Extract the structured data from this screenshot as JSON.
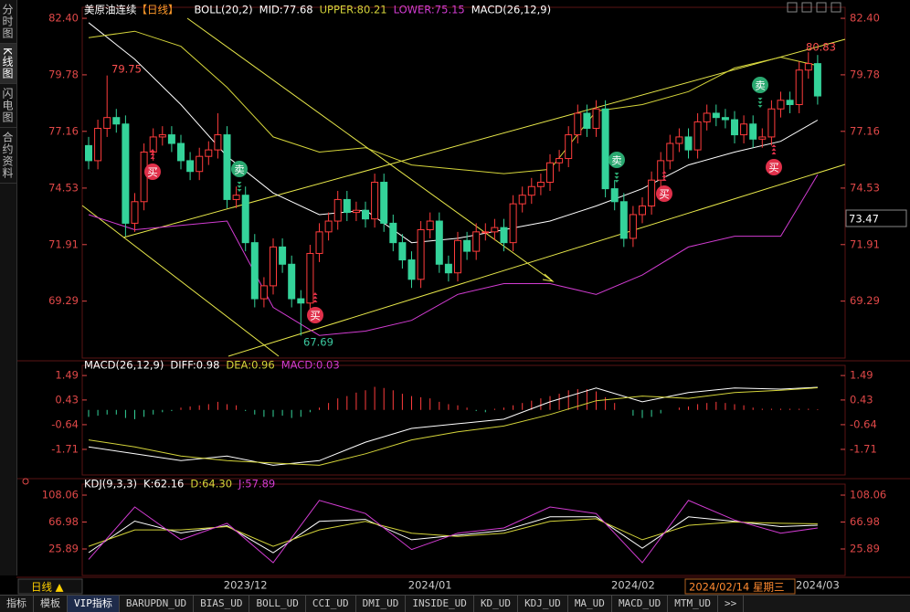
{
  "sidebar": [
    "分时图",
    "K线图",
    "闪电图",
    "合约资料"
  ],
  "chart_data": [
    {
      "type": "candlestick",
      "title": "美原油连续",
      "subtitle": "【日线】",
      "indicator_labels": [
        "BOLL(20,2)",
        "MID:77.68",
        "UPPER:80.21",
        "LOWER:75.15",
        "MACD(26,12,9)"
      ],
      "indicator_colors": [
        "#ffffff",
        "#ffffff",
        "#d4d43a",
        "#d23cd2",
        "#ffffff"
      ],
      "categories": [
        null,
        null,
        null,
        null,
        null,
        null,
        null,
        null,
        null,
        null,
        null,
        null,
        null,
        null,
        null,
        null,
        null,
        "2023/12",
        null,
        null,
        null,
        null,
        null,
        null,
        null,
        null,
        null,
        null,
        null,
        null,
        null,
        null,
        null,
        null,
        null,
        null,
        null,
        "2024/01",
        null,
        null,
        null,
        null,
        null,
        null,
        null,
        null,
        null,
        null,
        null,
        null,
        null,
        null,
        null,
        null,
        null,
        null,
        null,
        null,
        null,
        "2024/02",
        null,
        null,
        null,
        null,
        null,
        null,
        null,
        null,
        null,
        null,
        null,
        null,
        null,
        null,
        null,
        null,
        null,
        null,
        null,
        "2024/03"
      ],
      "open": [
        76.5,
        75.8,
        77.3,
        77.8,
        77.5,
        72.9,
        73.9,
        76.2,
        76.9,
        77.0,
        76.6,
        75.8,
        75.3,
        76.0,
        76.3,
        77.0,
        74.0,
        74.2,
        72.0,
        69.4,
        70.0,
        71.8,
        71.0,
        69.4,
        69.2,
        71.5,
        72.5,
        73.0,
        74.0,
        73.4,
        73.5,
        73.1,
        74.8,
        72.9,
        72.0,
        71.2,
        70.3,
        72.6,
        73.0,
        71.0,
        70.6,
        72.1,
        71.6,
        72.5,
        72.5,
        72.7,
        72.0,
        73.8,
        74.2,
        74.6,
        74.8,
        75.7,
        75.9,
        77.0,
        78.0,
        77.3,
        78.2,
        74.5,
        73.9,
        72.2,
        73.3,
        73.7,
        74.9,
        75.8,
        76.6,
        76.9,
        76.3,
        77.6,
        78.0,
        77.8,
        77.7,
        77.0,
        77.5,
        76.8,
        76.9,
        78.2,
        78.6,
        78.4,
        80.0,
        80.3
      ],
      "high": [
        76.9,
        77.7,
        79.75,
        78.2,
        77.9,
        74.3,
        76.6,
        77.3,
        77.4,
        77.4,
        77.0,
        76.2,
        76.4,
        76.7,
        78.0,
        77.4,
        74.6,
        74.6,
        72.4,
        70.4,
        72.2,
        72.2,
        71.4,
        69.8,
        71.9,
        72.9,
        73.4,
        74.4,
        74.4,
        73.9,
        73.9,
        75.2,
        75.2,
        73.3,
        72.4,
        71.6,
        73.0,
        73.4,
        73.4,
        71.4,
        72.5,
        72.5,
        72.9,
        72.9,
        73.1,
        73.1,
        74.2,
        74.6,
        75.0,
        75.2,
        76.1,
        76.3,
        77.4,
        78.4,
        78.4,
        78.6,
        78.6,
        74.9,
        74.3,
        73.7,
        74.1,
        75.3,
        76.2,
        77.0,
        77.3,
        77.3,
        78.0,
        78.4,
        78.4,
        78.2,
        78.1,
        77.9,
        77.9,
        77.3,
        78.6,
        79.0,
        79.0,
        80.4,
        80.83,
        80.7
      ],
      "low": [
        75.4,
        75.4,
        76.9,
        77.1,
        72.3,
        72.5,
        73.5,
        75.8,
        76.5,
        76.2,
        75.4,
        74.9,
        74.9,
        75.6,
        75.9,
        73.6,
        73.6,
        71.6,
        69.0,
        69.0,
        69.6,
        70.6,
        69.0,
        67.69,
        68.8,
        71.1,
        72.1,
        72.6,
        73.0,
        73.0,
        72.7,
        72.7,
        72.5,
        71.6,
        70.8,
        69.9,
        69.9,
        72.2,
        70.6,
        70.2,
        70.2,
        71.2,
        71.2,
        72.1,
        72.1,
        71.6,
        71.6,
        73.4,
        73.8,
        74.2,
        74.4,
        75.3,
        75.5,
        76.6,
        76.9,
        76.9,
        74.1,
        73.5,
        71.8,
        71.8,
        72.9,
        73.3,
        74.5,
        75.4,
        76.2,
        75.9,
        75.9,
        77.2,
        77.4,
        77.3,
        76.6,
        76.6,
        76.4,
        76.4,
        76.5,
        77.8,
        78.0,
        78.0,
        79.6,
        78.4
      ],
      "close": [
        75.8,
        77.3,
        77.8,
        77.5,
        72.9,
        73.9,
        76.2,
        76.9,
        77.0,
        76.6,
        75.8,
        75.3,
        76.0,
        76.3,
        77.0,
        74.0,
        74.2,
        72.0,
        69.4,
        70.0,
        71.8,
        71.0,
        69.4,
        69.2,
        71.5,
        72.5,
        73.0,
        74.0,
        73.4,
        73.5,
        73.1,
        74.8,
        72.9,
        72.0,
        71.2,
        70.3,
        72.6,
        73.0,
        71.0,
        70.6,
        72.1,
        71.6,
        72.5,
        72.5,
        72.7,
        72.0,
        73.8,
        74.2,
        74.6,
        74.8,
        75.7,
        75.9,
        77.0,
        78.0,
        77.3,
        78.2,
        74.5,
        73.9,
        72.2,
        73.3,
        73.7,
        74.9,
        75.8,
        76.6,
        76.9,
        76.3,
        77.6,
        78.0,
        77.8,
        77.7,
        77.0,
        77.5,
        76.8,
        76.9,
        78.2,
        78.6,
        78.4,
        80.0,
        80.3,
        78.8
      ],
      "up_color": "#ff3c3c",
      "down_color": "#34d39a",
      "series": [
        {
          "color": "#ffffff",
          "x": [
            0,
            5,
            10,
            15,
            20,
            25,
            30,
            35,
            40,
            45,
            50,
            55,
            60,
            65,
            70,
            75,
            79
          ],
          "values": [
            82.2,
            80.5,
            78.4,
            76.0,
            74.3,
            73.3,
            73.5,
            72.0,
            72.2,
            72.6,
            73.0,
            73.7,
            74.5,
            75.6,
            76.2,
            76.7,
            77.68
          ]
        },
        {
          "color": "#d4d43a",
          "x": [
            0,
            5,
            10,
            15,
            20,
            25,
            30,
            35,
            40,
            45,
            50,
            55,
            60,
            65,
            70,
            75,
            79
          ],
          "values": [
            81.5,
            81.8,
            81.1,
            79.2,
            76.9,
            76.2,
            76.4,
            75.6,
            75.4,
            75.2,
            75.4,
            78.1,
            78.4,
            79.0,
            80.1,
            80.6,
            80.21
          ]
        },
        {
          "color": "#d23cd2",
          "x": [
            0,
            5,
            10,
            15,
            20,
            25,
            30,
            35,
            40,
            45,
            50,
            55,
            60,
            65,
            70,
            75,
            79
          ],
          "values": [
            73.3,
            72.6,
            72.8,
            73.0,
            69.0,
            67.7,
            67.9,
            68.4,
            69.6,
            70.1,
            70.1,
            69.6,
            70.5,
            71.8,
            72.3,
            72.3,
            75.15
          ]
        }
      ],
      "ylim": [
        66.65,
        82.91
      ],
      "yticks": [
        {
          "value": 82.4,
          "label": "82.40"
        },
        79.78,
        77.16,
        74.53,
        71.91,
        69.29
      ],
      "annotations": [
        "79.75",
        "67.69",
        "80.83"
      ],
      "last_price": "73.47",
      "signal_labels": {
        "buy": "买",
        "sell": "卖"
      }
    },
    {
      "type": "macd",
      "title": "MACD(26,12,9)",
      "indicator_labels": [
        "DIFF:0.98",
        "DEA:0.96",
        "MACD:0.03"
      ],
      "indicator_colors": [
        "#ffffff",
        "#d4d43a",
        "#d23cd2"
      ],
      "values": [
        -0.3,
        -0.25,
        -0.2,
        -0.2,
        -0.35,
        -0.4,
        -0.3,
        -0.2,
        -0.1,
        -0.05,
        0.1,
        0.15,
        0.2,
        0.25,
        0.35,
        0.25,
        0.2,
        -0.05,
        -0.2,
        -0.3,
        -0.3,
        -0.25,
        -0.35,
        -0.3,
        -0.1,
        0.1,
        0.3,
        0.5,
        0.6,
        0.75,
        0.85,
        1.0,
        0.95,
        0.85,
        0.7,
        0.6,
        0.55,
        0.5,
        0.35,
        0.25,
        0.2,
        0.1,
        -0.05,
        -0.1,
        0.05,
        0.1,
        0.2,
        0.3,
        0.4,
        0.5,
        0.6,
        0.7,
        0.85,
        0.9,
        0.9,
        0.8,
        0.55,
        0.3,
        0.0,
        -0.25,
        -0.35,
        -0.3,
        -0.15,
        0.0,
        0.1,
        0.15,
        0.25,
        0.3,
        0.35,
        0.3,
        0.25,
        0.2,
        0.1,
        0.05,
        0.05,
        0.05,
        0.05,
        0.05,
        0.05,
        0.03
      ],
      "up_color": "#ff3c3c",
      "down_color": "#34d39a",
      "series": [
        {
          "color": "#ffffff",
          "x": [
            0,
            5,
            10,
            15,
            20,
            25,
            30,
            35,
            40,
            45,
            50,
            55,
            60,
            65,
            70,
            75,
            79
          ],
          "values": [
            -1.6,
            -1.9,
            -2.2,
            -2.0,
            -2.4,
            -2.2,
            -1.4,
            -0.8,
            -0.6,
            -0.4,
            0.35,
            0.95,
            0.35,
            0.75,
            0.95,
            0.9,
            0.98
          ]
        },
        {
          "color": "#d4d43a",
          "x": [
            0,
            5,
            10,
            15,
            20,
            25,
            30,
            35,
            40,
            45,
            50,
            55,
            60,
            65,
            70,
            75,
            79
          ],
          "values": [
            -1.3,
            -1.6,
            -2.0,
            -2.2,
            -2.3,
            -2.4,
            -1.9,
            -1.3,
            -0.95,
            -0.7,
            -0.2,
            0.4,
            0.6,
            0.5,
            0.75,
            0.85,
            0.96
          ]
        }
      ],
      "ylim": [
        -2.82,
        1.93
      ],
      "yticks": [
        1.49,
        0.43,
        -0.64,
        -1.71
      ]
    },
    {
      "type": "line",
      "title": "KDJ(9,3,3)",
      "indicator_labels": [
        "K:62.16",
        "D:64.30",
        "J:57.89"
      ],
      "indicator_colors": [
        "#ffffff",
        "#d4d43a",
        "#d23cd2"
      ],
      "series": [
        {
          "color": "#ffffff",
          "x": [
            0,
            5,
            10,
            15,
            20,
            25,
            30,
            35,
            40,
            45,
            50,
            55,
            60,
            65,
            70,
            75,
            79
          ],
          "values": [
            20.3,
            68.4,
            50.3,
            61.4,
            20,
            68,
            71,
            40,
            47,
            54,
            75,
            75,
            27,
            75,
            68,
            60,
            62.16
          ]
        },
        {
          "color": "#d4d43a",
          "x": [
            0,
            5,
            10,
            15,
            20,
            25,
            30,
            35,
            40,
            45,
            50,
            55,
            60,
            65,
            70,
            75,
            79
          ],
          "values": [
            30,
            55,
            55,
            60,
            30,
            55,
            68,
            50,
            45,
            50,
            68,
            72,
            40,
            62,
            67,
            65,
            64.3
          ]
        },
        {
          "color": "#d23cd2",
          "x": [
            0,
            5,
            10,
            15,
            20,
            25,
            30,
            35,
            40,
            45,
            50,
            55,
            60,
            65,
            70,
            75,
            79
          ],
          "values": [
            10,
            90,
            40,
            65,
            5,
            100,
            80,
            25,
            50,
            58,
            90,
            80,
            5,
            100,
            70,
            50,
            57.89
          ]
        }
      ],
      "ylim": [
        -14.5,
        124.8
      ],
      "yticks": [
        108.06,
        66.98,
        25.89
      ]
    }
  ],
  "period_button": "日线 ▲",
  "cursor_date": "2024/02/14 星期三",
  "tabs": [
    "指标",
    "模板",
    "VIP指标",
    "BARUPDN_UD",
    "BIAS_UD",
    "BOLL_UD",
    "CCI_UD",
    "DMI_UD",
    "INSIDE_UD",
    "KD_UD",
    "KDJ_UD",
    "MA_UD",
    "MACD_UD",
    "MTM_UD",
    ">>"
  ]
}
